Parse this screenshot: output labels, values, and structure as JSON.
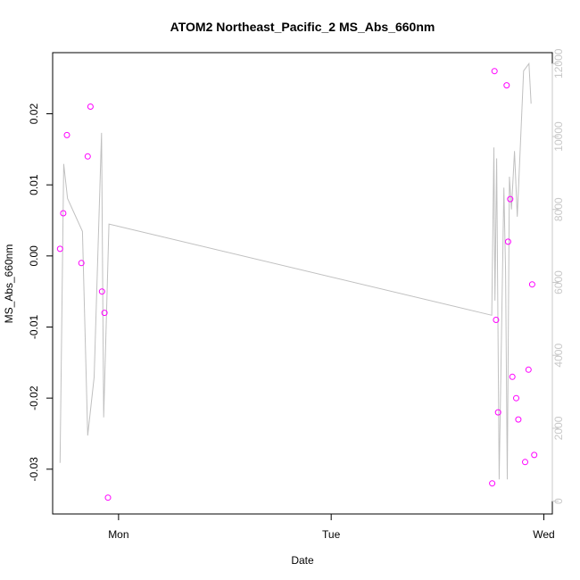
{
  "chart_data": {
    "type": "scatter",
    "title": "ATOM2 Northeast_Pacific_2 MS_Abs_660nm",
    "xlabel": "Date",
    "ylabel": "MS_Abs_660nm",
    "x_ticks": [
      {
        "value": 1.0,
        "label": "Mon"
      },
      {
        "value": 2.0,
        "label": "Tue"
      },
      {
        "value": 3.0,
        "label": "Wed"
      }
    ],
    "xlim": [
      0.69,
      3.04
    ],
    "y_ticks": [
      {
        "value": -0.03,
        "label": "-0.03"
      },
      {
        "value": -0.02,
        "label": "-0.02"
      },
      {
        "value": -0.01,
        "label": "-0.01"
      },
      {
        "value": 0.0,
        "label": "0.00"
      },
      {
        "value": 0.01,
        "label": "0.01"
      },
      {
        "value": 0.02,
        "label": "0.02"
      }
    ],
    "ylim": [
      -0.0363,
      0.0286
    ],
    "y2_ticks": [
      {
        "value": 0,
        "label": "0"
      },
      {
        "value": 2000,
        "label": "2000"
      },
      {
        "value": 4000,
        "label": "4000"
      },
      {
        "value": 6000,
        "label": "6000"
      },
      {
        "value": 8000,
        "label": "8000"
      },
      {
        "value": 10000,
        "label": "10000"
      },
      {
        "value": 12000,
        "label": "12000"
      }
    ],
    "y2lim": [
      -350,
      12300
    ],
    "grid": false,
    "point_color": "#ff00ff",
    "line_color": "#c0c0c0",
    "axis_color": "#000000",
    "y2_axis_color": "#c8c8c8",
    "series": [
      {
        "kind": "points",
        "axis": "left",
        "points": [
          {
            "x": 0.725,
            "y": 0.001
          },
          {
            "x": 0.74,
            "y": 0.006
          },
          {
            "x": 0.757,
            "y": 0.017
          },
          {
            "x": 0.825,
            "y": -0.001
          },
          {
            "x": 0.855,
            "y": 0.014
          },
          {
            "x": 0.868,
            "y": 0.021
          },
          {
            "x": 0.922,
            "y": -0.005
          },
          {
            "x": 0.934,
            "y": -0.008
          },
          {
            "x": 0.95,
            "y": -0.034
          },
          {
            "x": 2.757,
            "y": -0.032
          },
          {
            "x": 2.768,
            "y": 0.026
          },
          {
            "x": 2.775,
            "y": -0.009
          },
          {
            "x": 2.785,
            "y": -0.022
          },
          {
            "x": 2.825,
            "y": 0.024
          },
          {
            "x": 2.832,
            "y": 0.002
          },
          {
            "x": 2.842,
            "y": 0.008
          },
          {
            "x": 2.852,
            "y": -0.017
          },
          {
            "x": 2.87,
            "y": -0.02
          },
          {
            "x": 2.88,
            "y": -0.023
          },
          {
            "x": 2.912,
            "y": -0.029
          },
          {
            "x": 2.928,
            "y": -0.016
          },
          {
            "x": 2.945,
            "y": -0.004
          },
          {
            "x": 2.955,
            "y": -0.028
          }
        ]
      },
      {
        "kind": "line",
        "axis": "right",
        "points": [
          {
            "x": 0.725,
            "y": 1050
          },
          {
            "x": 0.742,
            "y": 9250
          },
          {
            "x": 0.76,
            "y": 8300
          },
          {
            "x": 0.83,
            "y": 7400
          },
          {
            "x": 0.855,
            "y": 1800
          },
          {
            "x": 0.885,
            "y": 3400
          },
          {
            "x": 0.92,
            "y": 10100
          },
          {
            "x": 0.93,
            "y": 2300
          },
          {
            "x": 0.955,
            "y": 7600
          },
          {
            "x": 2.755,
            "y": 5100
          },
          {
            "x": 2.765,
            "y": 9700
          },
          {
            "x": 2.77,
            "y": 5500
          },
          {
            "x": 2.778,
            "y": 9400
          },
          {
            "x": 2.79,
            "y": 600
          },
          {
            "x": 2.812,
            "y": 8600
          },
          {
            "x": 2.82,
            "y": 6300
          },
          {
            "x": 2.828,
            "y": 600
          },
          {
            "x": 2.838,
            "y": 8900
          },
          {
            "x": 2.848,
            "y": 8000
          },
          {
            "x": 2.862,
            "y": 9600
          },
          {
            "x": 2.875,
            "y": 7800
          },
          {
            "x": 2.905,
            "y": 11800
          },
          {
            "x": 2.93,
            "y": 12000
          },
          {
            "x": 2.94,
            "y": 10900
          }
        ]
      }
    ]
  }
}
